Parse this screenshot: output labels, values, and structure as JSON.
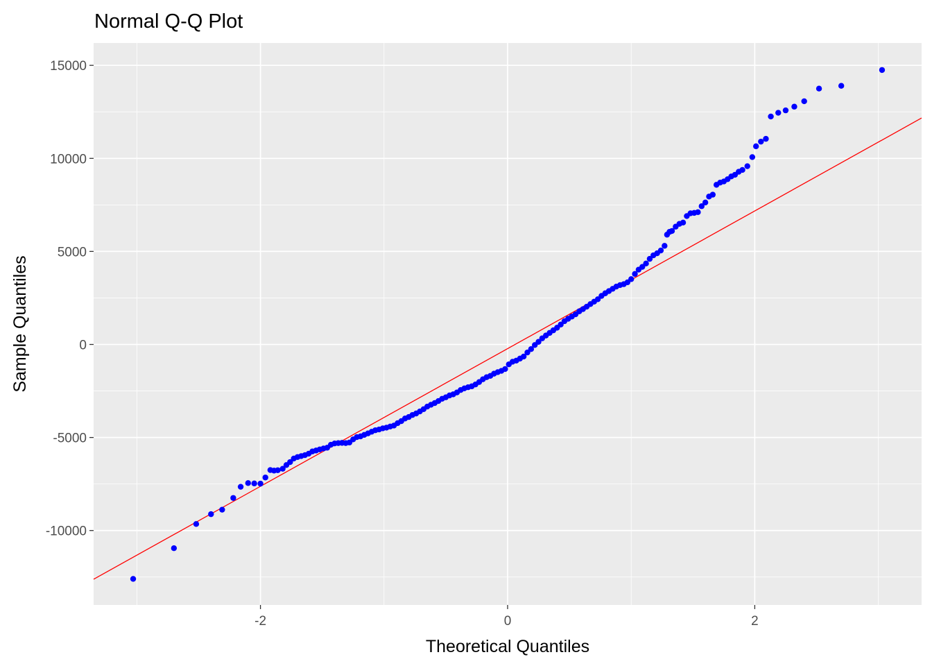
{
  "chart_data": {
    "type": "scatter",
    "title": "Normal Q-Q Plot",
    "xlabel": "Theoretical Quantiles",
    "ylabel": "Sample Quantiles",
    "xlim": [
      -3.35,
      3.35
    ],
    "ylim": [
      -14000,
      16200
    ],
    "x_ticks": [
      -2,
      0,
      2
    ],
    "x_tick_labels": [
      "-2",
      "0",
      "2"
    ],
    "y_ticks": [
      -10000,
      -5000,
      0,
      5000,
      10000,
      15000
    ],
    "y_tick_labels": [
      "-10000",
      "-5000",
      "0",
      "5000",
      "10000",
      "15000"
    ],
    "grid": true,
    "panel_background": "#ebebeb",
    "grid_color": "#ffffff",
    "point_color": "#0000ff",
    "line_color": "#ff0000",
    "reference_line": {
      "intercept": -225,
      "slope": 3700
    },
    "explicit_points": [
      [
        -3.03,
        -12600
      ],
      [
        -2.7,
        -10950
      ],
      [
        -2.52,
        -9650
      ],
      [
        -2.4,
        -9120
      ],
      [
        -2.31,
        -8880
      ],
      [
        -2.22,
        -8250
      ],
      [
        -2.16,
        -7650
      ],
      [
        -2.1,
        -7450
      ],
      [
        -2.05,
        -7470
      ],
      [
        -2.0,
        -7480
      ],
      [
        -1.96,
        -7150
      ],
      [
        -1.92,
        -6750
      ],
      [
        -1.89,
        -6780
      ],
      [
        -1.86,
        -6760
      ],
      [
        -1.82,
        -6680
      ],
      [
        -1.79,
        -6480
      ],
      [
        -1.76,
        -6320
      ],
      [
        -1.73,
        -6130
      ],
      [
        -1.7,
        -6050
      ],
      [
        -1.67,
        -6000
      ],
      [
        -1.64,
        -5950
      ],
      [
        -1.61,
        -5870
      ],
      [
        -1.58,
        -5750
      ],
      [
        -1.55,
        -5700
      ],
      [
        -1.52,
        -5640
      ],
      [
        -1.49,
        -5590
      ],
      [
        -1.46,
        -5550
      ],
      [
        -1.43,
        -5390
      ],
      [
        -1.4,
        -5320
      ],
      [
        -1.37,
        -5300
      ],
      [
        -1.34,
        -5290
      ],
      [
        -1.31,
        -5300
      ],
      [
        -1.28,
        -5270
      ],
      [
        -1.25,
        -5100
      ],
      [
        -1.22,
        -4980
      ],
      [
        -1.19,
        -4940
      ],
      [
        -1.16,
        -4860
      ],
      [
        -1.13,
        -4780
      ],
      [
        -1.1,
        -4690
      ],
      [
        -1.07,
        -4610
      ],
      [
        -1.04,
        -4570
      ],
      [
        -1.01,
        -4510
      ],
      [
        -0.98,
        -4470
      ],
      [
        -0.95,
        -4410
      ],
      [
        -0.92,
        -4360
      ],
      [
        -0.89,
        -4230
      ],
      [
        -0.86,
        -4120
      ],
      [
        -0.83,
        -3980
      ],
      [
        -0.8,
        -3900
      ],
      [
        -0.77,
        -3790
      ],
      [
        -0.74,
        -3710
      ],
      [
        -0.71,
        -3600
      ],
      [
        -0.68,
        -3480
      ],
      [
        -0.65,
        -3340
      ],
      [
        -0.62,
        -3240
      ],
      [
        -0.59,
        -3150
      ],
      [
        -0.56,
        -3040
      ],
      [
        -0.53,
        -2920
      ],
      [
        -0.5,
        -2840
      ],
      [
        -0.47,
        -2740
      ],
      [
        -0.44,
        -2680
      ],
      [
        -0.41,
        -2580
      ],
      [
        -0.38,
        -2450
      ],
      [
        -0.35,
        -2360
      ],
      [
        -0.32,
        -2300
      ],
      [
        -0.29,
        -2250
      ],
      [
        -0.26,
        -2150
      ],
      [
        -0.23,
        -2020
      ],
      [
        -0.2,
        -1870
      ],
      [
        -0.17,
        -1760
      ],
      [
        -0.14,
        -1690
      ],
      [
        -0.11,
        -1570
      ],
      [
        -0.08,
        -1490
      ],
      [
        -0.05,
        -1420
      ],
      [
        -0.02,
        -1320
      ],
      [
        0.01,
        -1070
      ],
      [
        0.04,
        -930
      ],
      [
        0.07,
        -870
      ],
      [
        0.1,
        -760
      ],
      [
        0.13,
        -650
      ],
      [
        0.16,
        -430
      ],
      [
        0.19,
        -250
      ],
      [
        0.22,
        -30
      ],
      [
        0.25,
        140
      ],
      [
        0.28,
        330
      ],
      [
        0.31,
        480
      ],
      [
        0.34,
        620
      ],
      [
        0.37,
        760
      ],
      [
        0.4,
        900
      ],
      [
        0.43,
        1070
      ],
      [
        0.46,
        1250
      ],
      [
        0.49,
        1380
      ],
      [
        0.52,
        1500
      ],
      [
        0.55,
        1620
      ],
      [
        0.58,
        1780
      ],
      [
        0.61,
        1900
      ],
      [
        0.64,
        2030
      ],
      [
        0.67,
        2170
      ],
      [
        0.7,
        2300
      ],
      [
        0.73,
        2430
      ],
      [
        0.76,
        2610
      ],
      [
        0.79,
        2750
      ],
      [
        0.82,
        2870
      ],
      [
        0.85,
        2990
      ],
      [
        0.88,
        3110
      ],
      [
        0.91,
        3190
      ],
      [
        0.94,
        3240
      ],
      [
        0.97,
        3340
      ],
      [
        1.0,
        3510
      ],
      [
        1.03,
        3790
      ],
      [
        1.06,
        4020
      ],
      [
        1.09,
        4170
      ],
      [
        1.12,
        4350
      ],
      [
        1.15,
        4600
      ],
      [
        1.18,
        4790
      ],
      [
        1.21,
        4900
      ],
      [
        1.24,
        5050
      ],
      [
        1.27,
        5300
      ],
      [
        1.29,
        5900
      ],
      [
        1.31,
        6050
      ],
      [
        1.33,
        6100
      ],
      [
        1.36,
        6330
      ],
      [
        1.39,
        6480
      ],
      [
        1.42,
        6550
      ],
      [
        1.45,
        6900
      ],
      [
        1.48,
        7050
      ],
      [
        1.51,
        7070
      ],
      [
        1.54,
        7110
      ],
      [
        1.57,
        7430
      ],
      [
        1.6,
        7630
      ],
      [
        1.63,
        7950
      ],
      [
        1.66,
        8050
      ],
      [
        1.69,
        8580
      ],
      [
        1.72,
        8700
      ],
      [
        1.75,
        8760
      ],
      [
        1.78,
        8880
      ],
      [
        1.81,
        9030
      ],
      [
        1.84,
        9120
      ],
      [
        1.87,
        9280
      ],
      [
        1.9,
        9380
      ],
      [
        1.94,
        9580
      ],
      [
        1.98,
        10070
      ],
      [
        2.01,
        10650
      ],
      [
        2.05,
        10900
      ],
      [
        2.09,
        11050
      ],
      [
        2.13,
        12250
      ],
      [
        2.19,
        12450
      ],
      [
        2.25,
        12580
      ],
      [
        2.32,
        12780
      ],
      [
        2.4,
        13070
      ],
      [
        2.52,
        13750
      ],
      [
        2.7,
        13900
      ],
      [
        3.03,
        14750
      ]
    ]
  }
}
